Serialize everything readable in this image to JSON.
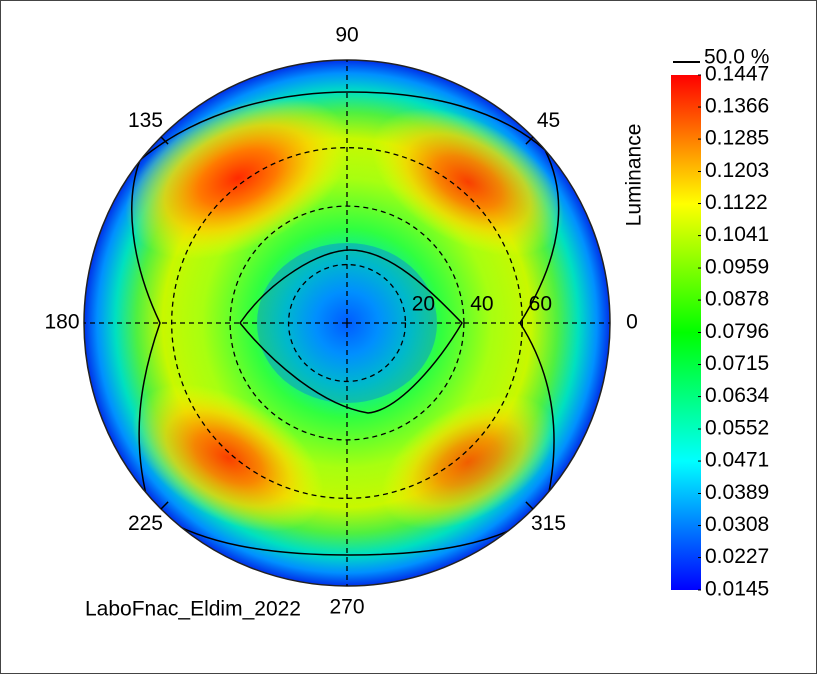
{
  "chart_data": {
    "type": "polar_heatmap",
    "angle_ticks": [
      0,
      45,
      90,
      135,
      180,
      225,
      270,
      315
    ],
    "radius_ticks": [
      20,
      40,
      60
    ],
    "rlim": [
      0,
      90
    ],
    "colorbar": {
      "label": "Luminance",
      "lim": [
        0.0145,
        0.1447
      ],
      "ticks": [
        0.1447,
        0.1366,
        0.1285,
        0.1203,
        0.1122,
        0.1041,
        0.0959,
        0.0878,
        0.0796,
        0.0715,
        0.0634,
        0.0552,
        0.0471,
        0.0389,
        0.0308,
        0.0227,
        0.0145
      ],
      "colors": [
        "#0000ff",
        "#0080ff",
        "#00ffff",
        "#00ff80",
        "#00ff00",
        "#80ff00",
        "#ffff00",
        "#ff8000",
        "#ff0000"
      ]
    },
    "contour_label": "50.0 %",
    "footer": "LaboFnac_Eldim_2022"
  }
}
